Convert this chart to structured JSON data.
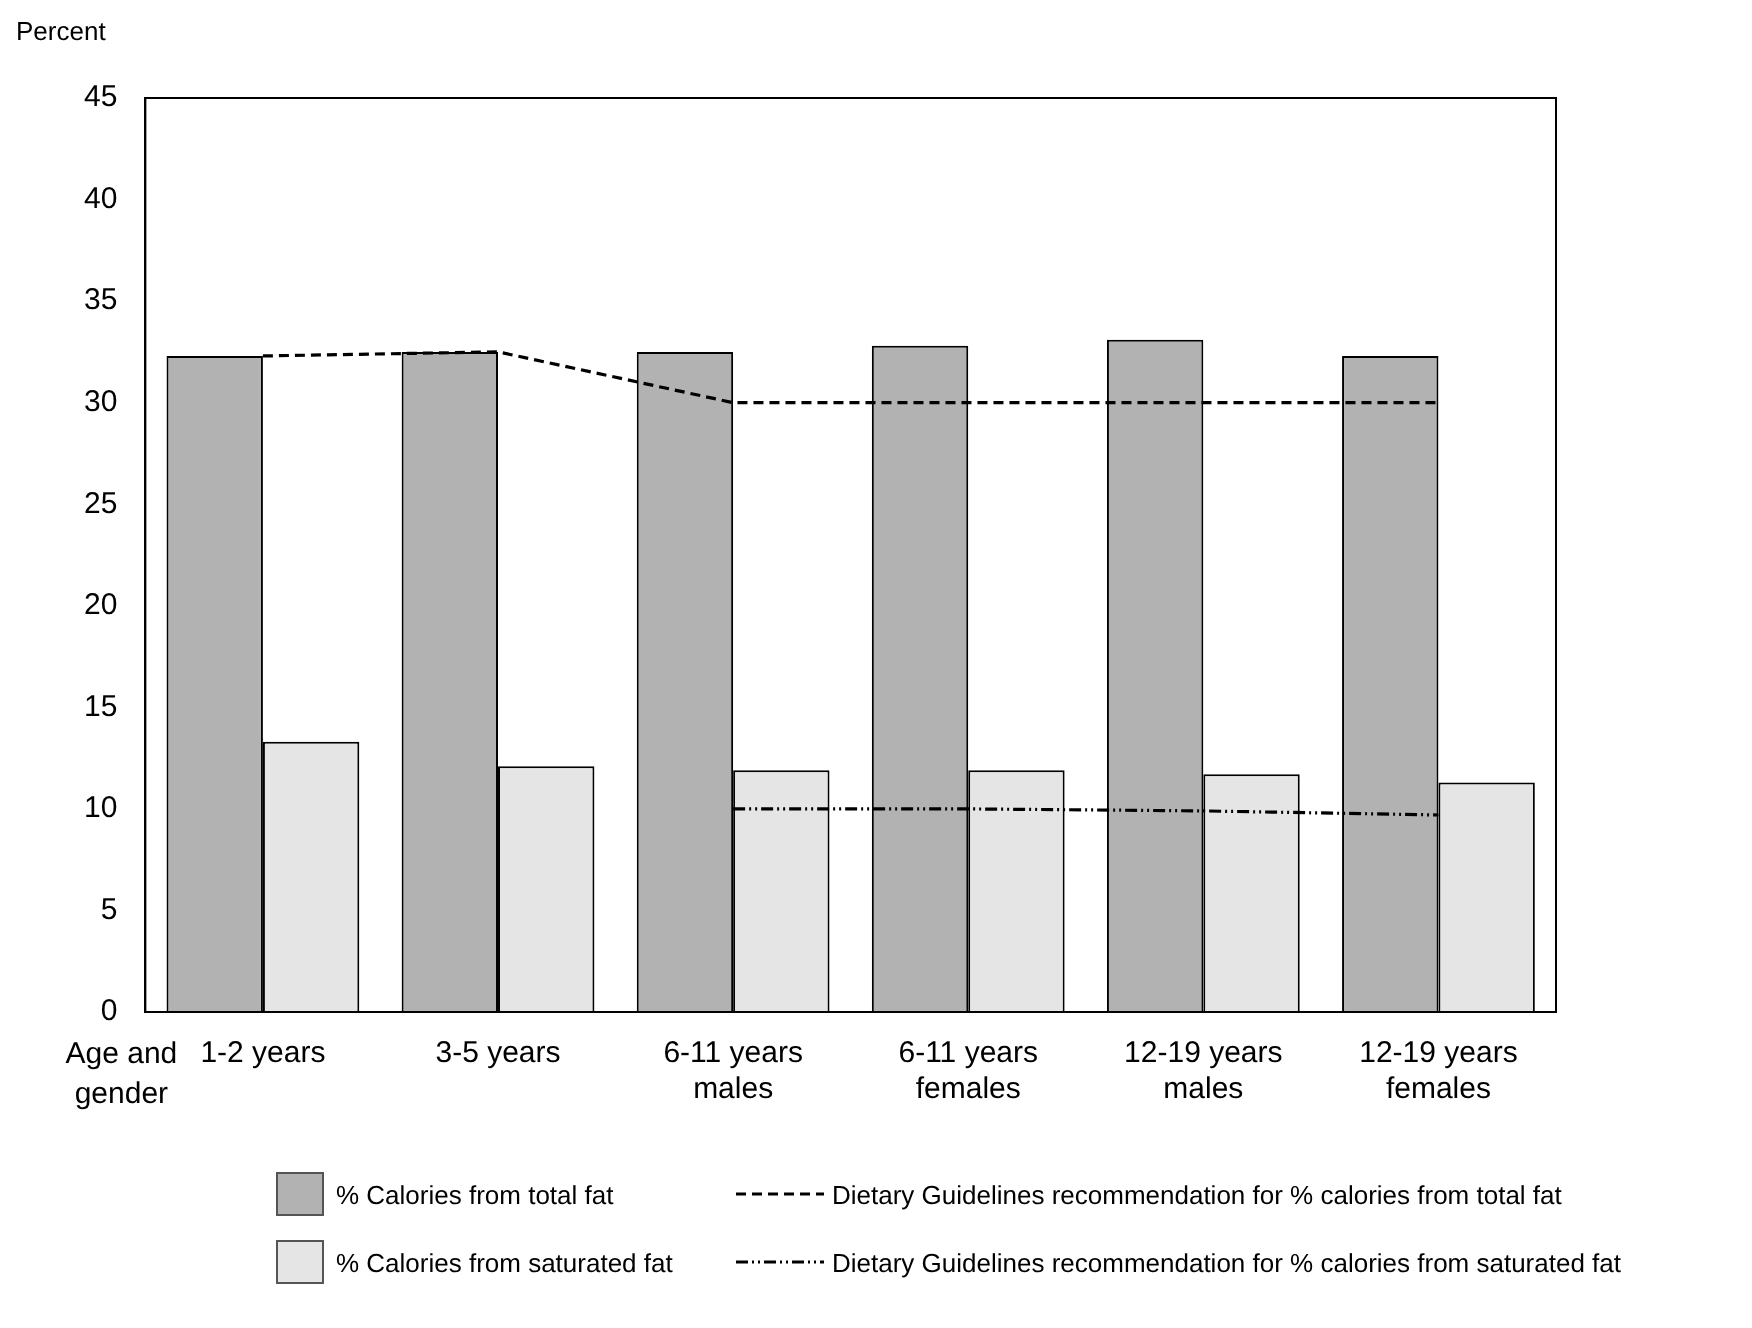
{
  "chart_data": {
    "type": "bar",
    "ylabel": "Percent",
    "xlabel": "Age and\ngender",
    "categories": [
      "1-2 years",
      "3-5 years",
      "6-11 years\nmales",
      "6-11 years\nfemales",
      "12-19 years\nmales",
      "12-19 years\nfemales"
    ],
    "series": [
      {
        "name": "% Calories from total fat",
        "color": "#b2b2b2",
        "values": [
          32.3,
          32.5,
          32.5,
          32.8,
          33.1,
          32.3
        ]
      },
      {
        "name": "% Calories from saturated fat",
        "color": "#e5e5e5",
        "values": [
          13.3,
          12.1,
          11.9,
          11.9,
          11.7,
          11.3
        ]
      },
      {
        "name": "Dietary Guidelines recommendation for % calories from total fat",
        "type": "line",
        "color": "#000000",
        "line_style": "dashed",
        "values": [
          32.3,
          32.5,
          30,
          30,
          30,
          30
        ]
      },
      {
        "name": "Dietary Guidelines recommendation for % calories from saturated fat",
        "type": "line",
        "color": "#000000",
        "line_style": "dotted",
        "values": [
          null,
          null,
          10,
          10,
          9.9,
          9.7
        ]
      }
    ],
    "ylim": [
      0,
      45
    ],
    "yticks": [
      0,
      5,
      10,
      15,
      20,
      25,
      30,
      35,
      40,
      45
    ],
    "marker": "none",
    "legend": "bottom"
  }
}
